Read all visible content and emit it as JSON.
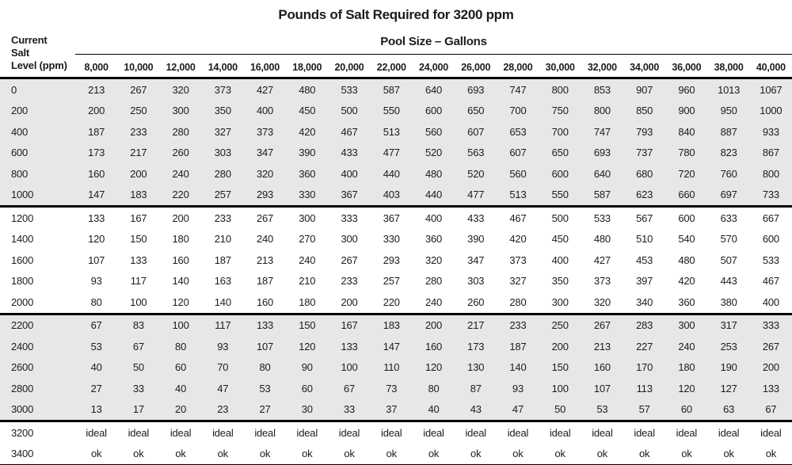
{
  "title": "Pounds of Salt Required for 3200 ppm",
  "header": {
    "corner_lines": [
      "Current",
      "Salt",
      "Level (ppm)"
    ],
    "group_label": "Pool Size – Gallons"
  },
  "colors": {
    "shaded_row_bg": "#e7e7e7",
    "rule": "#000000",
    "text": "#1c1c1c"
  },
  "chart_data": {
    "type": "table",
    "title": "Pounds of Salt Required for 3200 ppm",
    "row_axis_label": "Current Salt Level (ppm)",
    "column_axis_label": "Pool Size – Gallons",
    "columns": [
      "8,000",
      "10,000",
      "12,000",
      "14,000",
      "16,000",
      "18,000",
      "20,000",
      "22,000",
      "24,000",
      "26,000",
      "28,000",
      "30,000",
      "32,000",
      "34,000",
      "36,000",
      "38,000",
      "40,000"
    ],
    "rows": [
      {
        "label": "0",
        "shaded": true,
        "block_end": false,
        "values": [
          213,
          267,
          320,
          373,
          427,
          480,
          533,
          587,
          640,
          693,
          747,
          800,
          853,
          907,
          960,
          1013,
          1067
        ]
      },
      {
        "label": "200",
        "shaded": true,
        "block_end": false,
        "values": [
          200,
          250,
          300,
          350,
          400,
          450,
          500,
          550,
          600,
          650,
          700,
          750,
          800,
          850,
          900,
          950,
          1000
        ]
      },
      {
        "label": "400",
        "shaded": true,
        "block_end": false,
        "values": [
          187,
          233,
          280,
          327,
          373,
          420,
          467,
          513,
          560,
          607,
          653,
          700,
          747,
          793,
          840,
          887,
          933
        ]
      },
      {
        "label": "600",
        "shaded": true,
        "block_end": false,
        "values": [
          173,
          217,
          260,
          303,
          347,
          390,
          433,
          477,
          520,
          563,
          607,
          650,
          693,
          737,
          780,
          823,
          867
        ]
      },
      {
        "label": "800",
        "shaded": true,
        "block_end": false,
        "values": [
          160,
          200,
          240,
          280,
          320,
          360,
          400,
          440,
          480,
          520,
          560,
          600,
          640,
          680,
          720,
          760,
          800
        ]
      },
      {
        "label": "1000",
        "shaded": true,
        "block_end": true,
        "values": [
          147,
          183,
          220,
          257,
          293,
          330,
          367,
          403,
          440,
          477,
          513,
          550,
          587,
          623,
          660,
          697,
          733
        ]
      },
      {
        "label": "1200",
        "shaded": false,
        "block_end": false,
        "values": [
          133,
          167,
          200,
          233,
          267,
          300,
          333,
          367,
          400,
          433,
          467,
          500,
          533,
          567,
          600,
          633,
          667
        ]
      },
      {
        "label": "1400",
        "shaded": false,
        "block_end": false,
        "values": [
          120,
          150,
          180,
          210,
          240,
          270,
          300,
          330,
          360,
          390,
          420,
          450,
          480,
          510,
          540,
          570,
          600
        ]
      },
      {
        "label": "1600",
        "shaded": false,
        "block_end": false,
        "values": [
          107,
          133,
          160,
          187,
          213,
          240,
          267,
          293,
          320,
          347,
          373,
          400,
          427,
          453,
          480,
          507,
          533
        ]
      },
      {
        "label": "1800",
        "shaded": false,
        "block_end": false,
        "values": [
          93,
          117,
          140,
          163,
          187,
          210,
          233,
          257,
          280,
          303,
          327,
          350,
          373,
          397,
          420,
          443,
          467
        ]
      },
      {
        "label": "2000",
        "shaded": false,
        "block_end": true,
        "values": [
          80,
          100,
          120,
          140,
          160,
          180,
          200,
          220,
          240,
          260,
          280,
          300,
          320,
          340,
          360,
          380,
          400
        ]
      },
      {
        "label": "2200",
        "shaded": true,
        "block_end": false,
        "values": [
          67,
          83,
          100,
          117,
          133,
          150,
          167,
          183,
          200,
          217,
          233,
          250,
          267,
          283,
          300,
          317,
          333
        ]
      },
      {
        "label": "2400",
        "shaded": true,
        "block_end": false,
        "values": [
          53,
          67,
          80,
          93,
          107,
          120,
          133,
          147,
          160,
          173,
          187,
          200,
          213,
          227,
          240,
          253,
          267
        ]
      },
      {
        "label": "2600",
        "shaded": true,
        "block_end": false,
        "values": [
          40,
          50,
          60,
          70,
          80,
          90,
          100,
          110,
          120,
          130,
          140,
          150,
          160,
          170,
          180,
          190,
          200
        ]
      },
      {
        "label": "2800",
        "shaded": true,
        "block_end": false,
        "values": [
          27,
          33,
          40,
          47,
          53,
          60,
          67,
          73,
          80,
          87,
          93,
          100,
          107,
          113,
          120,
          127,
          133
        ]
      },
      {
        "label": "3000",
        "shaded": true,
        "block_end": true,
        "values": [
          13,
          17,
          20,
          23,
          27,
          30,
          33,
          37,
          40,
          43,
          47,
          50,
          53,
          57,
          60,
          63,
          67
        ]
      },
      {
        "label": "3200",
        "shaded": false,
        "block_end": false,
        "values": [
          "ideal",
          "ideal",
          "ideal",
          "ideal",
          "ideal",
          "ideal",
          "ideal",
          "ideal",
          "ideal",
          "ideal",
          "ideal",
          "ideal",
          "ideal",
          "ideal",
          "ideal",
          "ideal",
          "ideal"
        ]
      },
      {
        "label": "3400",
        "shaded": false,
        "block_end": true,
        "values": [
          "ok",
          "ok",
          "ok",
          "ok",
          "ok",
          "ok",
          "ok",
          "ok",
          "ok",
          "ok",
          "ok",
          "ok",
          "ok",
          "ok",
          "ok",
          "ok",
          "ok"
        ]
      }
    ]
  }
}
